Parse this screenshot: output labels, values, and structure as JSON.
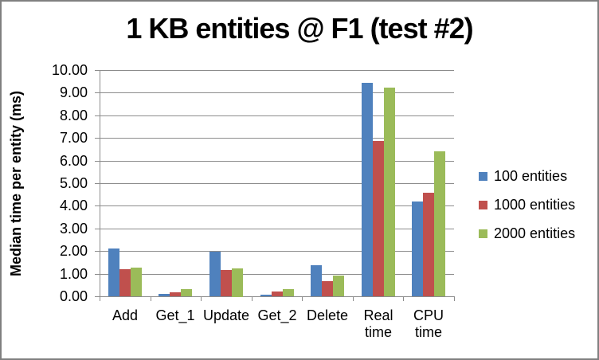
{
  "chart_data": {
    "type": "bar",
    "title": "1 KB entities @ F1 (test #2)",
    "ylabel": "Median time per entity (ms)",
    "xlabel": "",
    "ylim": [
      0,
      10
    ],
    "ytick_step": 1,
    "ytick_decimals": 2,
    "grid": true,
    "legend_position": "right",
    "categories": [
      "Add",
      "Get_1",
      "Update",
      "Get_2",
      "Delete",
      "Real time",
      "CPU time"
    ],
    "category_display": [
      [
        "Add"
      ],
      [
        "Get_1"
      ],
      [
        "Update"
      ],
      [
        "Get_2"
      ],
      [
        "Delete"
      ],
      [
        "Real",
        "time"
      ],
      [
        "CPU",
        "time"
      ]
    ],
    "series": [
      {
        "name": "100 entities",
        "color": "#4F81BD",
        "values": [
          2.1,
          0.1,
          1.97,
          0.06,
          1.37,
          9.43,
          4.18
        ]
      },
      {
        "name": "1000 entities",
        "color": "#C0504D",
        "values": [
          1.21,
          0.19,
          1.17,
          0.2,
          0.67,
          6.85,
          4.57
        ]
      },
      {
        "name": "2000 entities",
        "color": "#9BBB59",
        "values": [
          1.27,
          0.32,
          1.25,
          0.33,
          0.91,
          9.23,
          6.42
        ]
      }
    ]
  },
  "colors": {
    "series_blue": "#4F81BD",
    "series_red": "#C0504D",
    "series_green": "#9BBB59",
    "gridline": "#8C8C8C",
    "axis": "#8C8C8C",
    "frame_border": "#808080",
    "background": "#FFFFFF",
    "text": "#000000"
  }
}
